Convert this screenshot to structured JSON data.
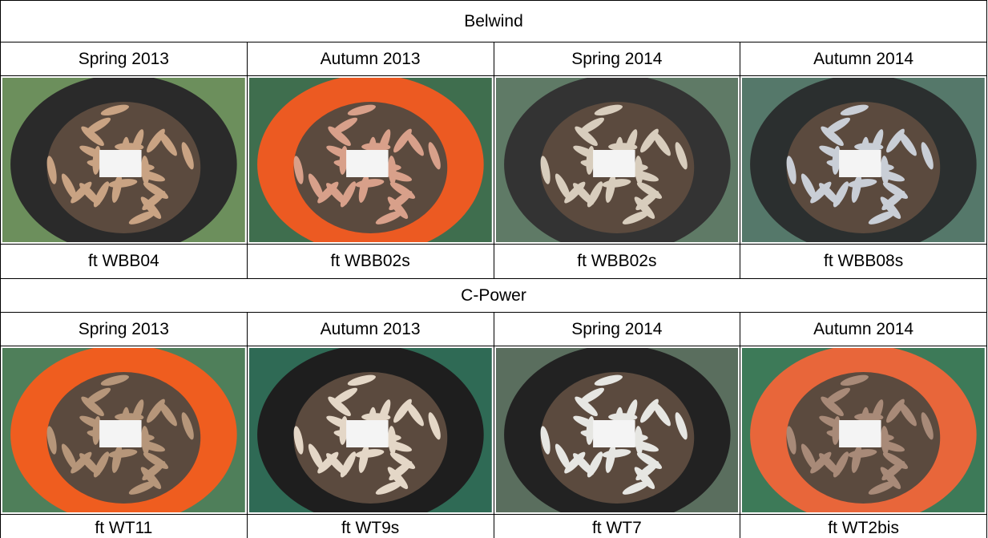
{
  "groups": [
    {
      "site": "Belwind",
      "seasons": [
        "Spring 2013",
        "Autumn 2013",
        "Spring 2014",
        "Autumn 2014"
      ],
      "captions": [
        "ft WBB04",
        "ft WBB02s",
        "ft WBB02s",
        "ft WBB08s"
      ]
    },
    {
      "site": "C-Power",
      "seasons": [
        "Spring 2013",
        "Autumn 2013",
        "Spring 2014",
        "Autumn 2014"
      ],
      "captions": [
        "ft WT11",
        "ft WT9s",
        "ft WT7",
        "ft WT2bis"
      ]
    }
  ]
}
